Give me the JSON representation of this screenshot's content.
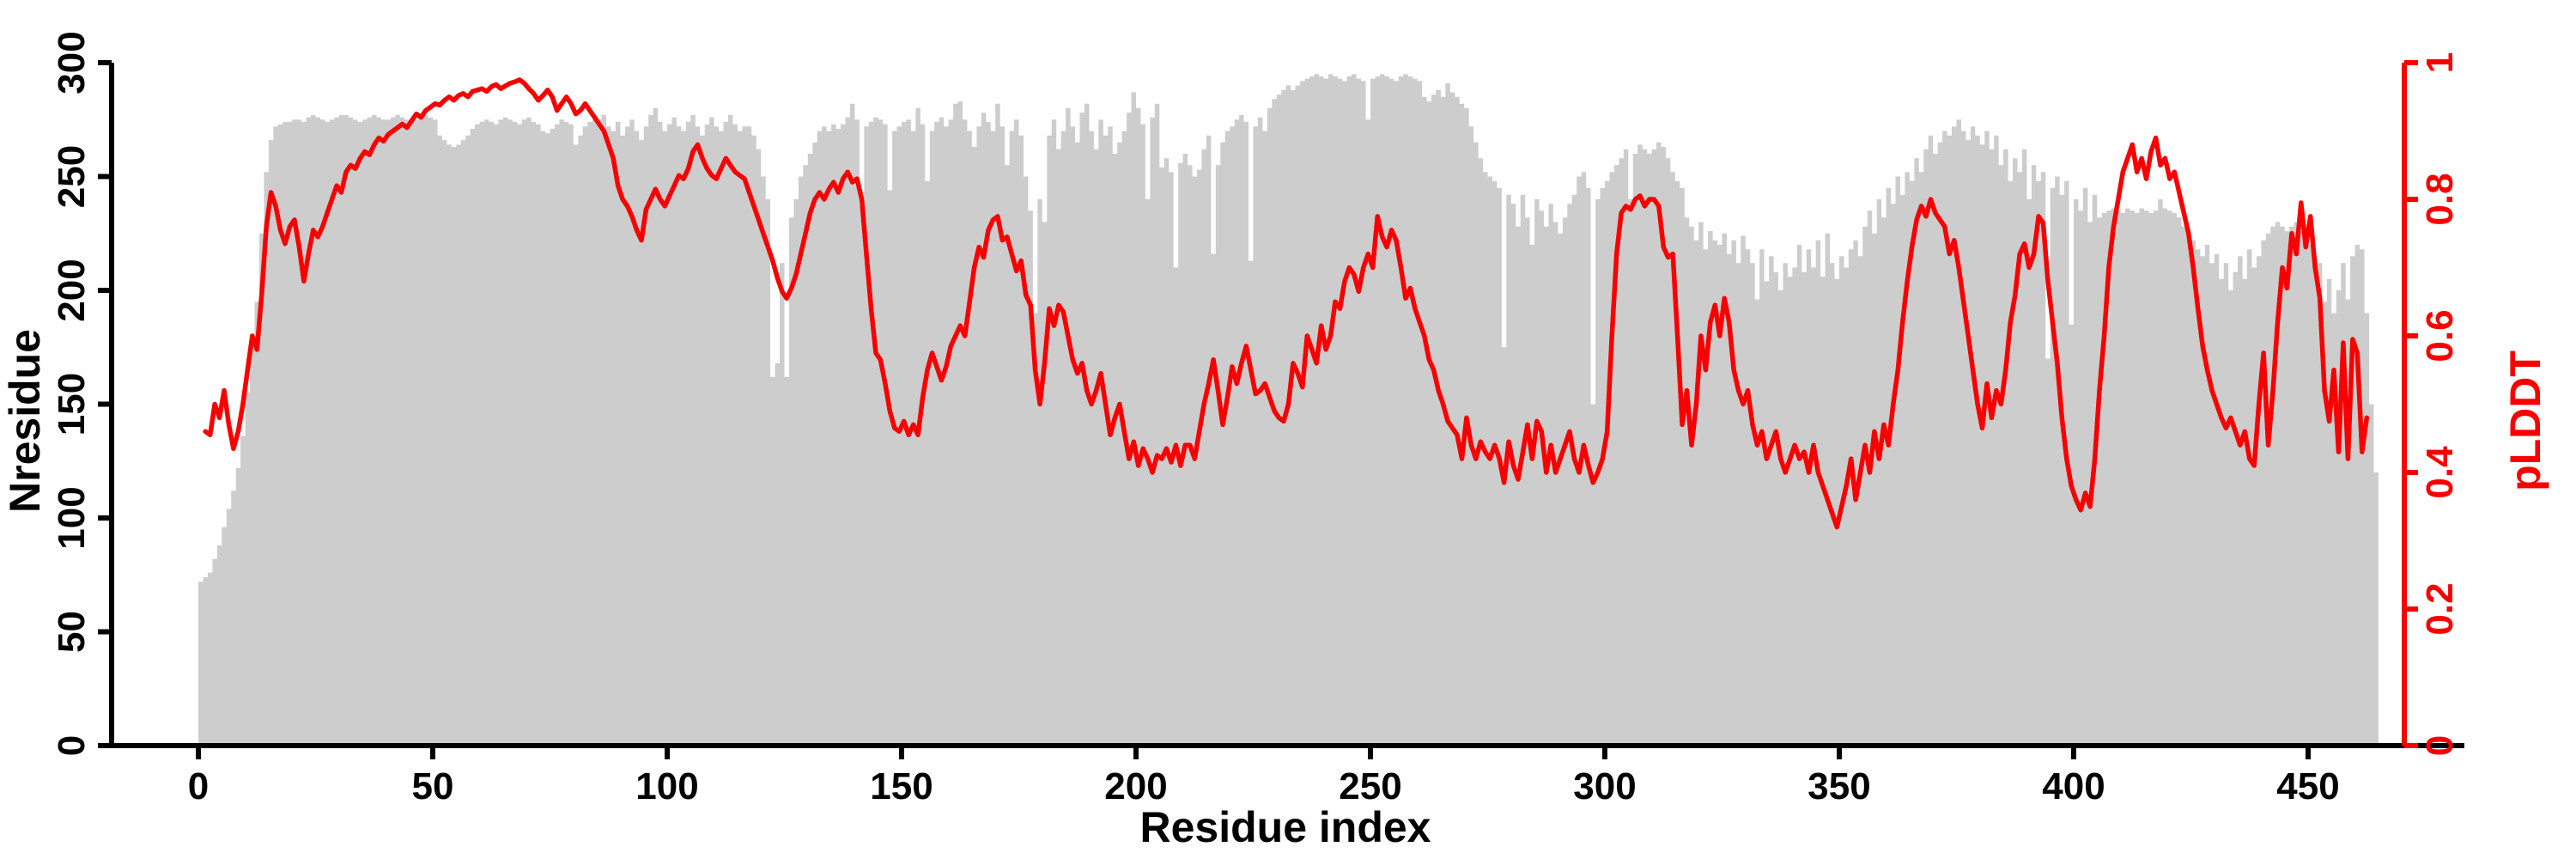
{
  "chart_data": {
    "type": "bar",
    "subtype": "bar-with-line-overlay",
    "title": "",
    "xlabel": "Residue index",
    "ylabel_left": "Nresidue",
    "ylabel_right": "pLDDT",
    "x_range": [
      0,
      465
    ],
    "ylim_left": [
      0,
      300
    ],
    "ylim_right": [
      0,
      1
    ],
    "grid": "off",
    "legend": "none",
    "bar_color": "#cdcdcd",
    "line_color": "#f80000",
    "axis_color_left": "#000000",
    "axis_color_right": "#f80000",
    "x_ticks": [
      0,
      50,
      100,
      150,
      200,
      250,
      300,
      350,
      400,
      450
    ],
    "x_tick_labels": [
      "0",
      "50",
      "100",
      "150",
      "200",
      "250",
      "300",
      "350",
      "400",
      "450"
    ],
    "y_left_ticks": [
      0,
      50,
      100,
      150,
      200,
      250,
      300
    ],
    "y_left_tick_labels": [
      "0",
      "50",
      "100",
      "150",
      "200",
      "250",
      "300"
    ],
    "y_right_ticks": [
      0,
      0.2,
      0.4,
      0.6,
      0.8,
      1
    ],
    "y_right_tick_labels": [
      "0",
      "0.2",
      "0.4",
      "0.6",
      "0.8",
      "1"
    ],
    "series": [
      {
        "name": "Nresidue",
        "kind": "bar",
        "axis": "left",
        "start_index": 0,
        "values": [
          72,
          74,
          76,
          82,
          88,
          96,
          104,
          112,
          122,
          136,
          155,
          176,
          195,
          225,
          252,
          266,
          272,
          273,
          274,
          274,
          275,
          275,
          274,
          276,
          277,
          276,
          275,
          274,
          275,
          276,
          277,
          277,
          276,
          275,
          274,
          275,
          276,
          277,
          276,
          275,
          275,
          276,
          277,
          276,
          275,
          274,
          275,
          276,
          277,
          276,
          275,
          268,
          266,
          264,
          263,
          264,
          266,
          268,
          271,
          273,
          274,
          275,
          274,
          273,
          275,
          276,
          275,
          274,
          273,
          275,
          276,
          274,
          273,
          270,
          269,
          271,
          273,
          275,
          274,
          273,
          264,
          268,
          272,
          274,
          275,
          275,
          277,
          272,
          270,
          274,
          268,
          272,
          275,
          270,
          266,
          272,
          277,
          280,
          274,
          270,
          273,
          276,
          272,
          270,
          274,
          277,
          272,
          268,
          273,
          276,
          272,
          270,
          274,
          277,
          273,
          270,
          272,
          272,
          268,
          262,
          250,
          240,
          162,
          168,
          212,
          162,
          232,
          240,
          250,
          255,
          260,
          265,
          270,
          272,
          270,
          273,
          271,
          273,
          276,
          282,
          275,
          237,
          272,
          274,
          276,
          275,
          273,
          244,
          270,
          272,
          274,
          275,
          270,
          280,
          273,
          248,
          270,
          274,
          276,
          272,
          275,
          282,
          283,
          275,
          270,
          263,
          272,
          278,
          274,
          270,
          282,
          272,
          255,
          270,
          275,
          268,
          250,
          235,
          190,
          240,
          230,
          268,
          275,
          262,
          270,
          280,
          272,
          265,
          278,
          282,
          270,
          262,
          275,
          268,
          272,
          260,
          265,
          270,
          278,
          287,
          280,
          273,
          240,
          276,
          282,
          254,
          258,
          252,
          210,
          256,
          260,
          255,
          250,
          253,
          262,
          268,
          216,
          255,
          265,
          270,
          272,
          275,
          277,
          274,
          213,
          272,
          276,
          270,
          280,
          284,
          286,
          288,
          290,
          288,
          290,
          292,
          293,
          294,
          295,
          294,
          293,
          295,
          294,
          293,
          292,
          294,
          295,
          293,
          292,
          275,
          293,
          294,
          295,
          294,
          293,
          292,
          294,
          295,
          294,
          293,
          292,
          285,
          283,
          286,
          288,
          285,
          291,
          287,
          285,
          282,
          280,
          272,
          265,
          258,
          252,
          250,
          248,
          245,
          175,
          242,
          238,
          228,
          242,
          232,
          220,
          240,
          235,
          228,
          238,
          230,
          225,
          232,
          238,
          242,
          250,
          252,
          245,
          150,
          240,
          245,
          248,
          252,
          255,
          258,
          262,
          240,
          260,
          264,
          262,
          260,
          262,
          265,
          263,
          258,
          252,
          248,
          245,
          232,
          228,
          222,
          230,
          218,
          226,
          222,
          220,
          225,
          216,
          222,
          212,
          224,
          218,
          212,
          196,
          218,
          204,
          215,
          208,
          200,
          212,
          206,
          210,
          220,
          208,
          218,
          210,
          222,
          206,
          225,
          212,
          205,
          215,
          210,
          218,
          222,
          215,
          228,
          235,
          225,
          240,
          232,
          245,
          238,
          250,
          242,
          252,
          248,
          258,
          252,
          262,
          268,
          260,
          265,
          270,
          268,
          272,
          275,
          270,
          266,
          272,
          268,
          264,
          270,
          262,
          268,
          255,
          262,
          248,
          258,
          252,
          262,
          240,
          255,
          248,
          252,
          170,
          245,
          250,
          242,
          248,
          185,
          240,
          235,
          245,
          230,
          242,
          232,
          234,
          235,
          236,
          235,
          234,
          236,
          235,
          234,
          236,
          235,
          234,
          235,
          240,
          236,
          235,
          234,
          232,
          228,
          225,
          222,
          218,
          215,
          220,
          212,
          216,
          205,
          212,
          200,
          208,
          215,
          205,
          218,
          210,
          215,
          222,
          225,
          228,
          230,
          228,
          226,
          228,
          230,
          226,
          224,
          220,
          215,
          212,
          195,
          205,
          190,
          200,
          212,
          196,
          215,
          220,
          218,
          190,
          150,
          120
        ]
      },
      {
        "name": "pLDDT",
        "kind": "line",
        "axis": "right",
        "start_index": 1,
        "values": [
          0.46,
          0.455,
          0.5,
          0.48,
          0.52,
          0.47,
          0.435,
          0.46,
          0.5,
          0.55,
          0.6,
          0.58,
          0.66,
          0.76,
          0.81,
          0.79,
          0.755,
          0.735,
          0.76,
          0.77,
          0.73,
          0.68,
          0.72,
          0.755,
          0.745,
          0.76,
          0.78,
          0.8,
          0.82,
          0.81,
          0.84,
          0.85,
          0.845,
          0.86,
          0.87,
          0.865,
          0.88,
          0.89,
          0.885,
          0.895,
          0.9,
          0.905,
          0.91,
          0.905,
          0.915,
          0.925,
          0.92,
          0.93,
          0.935,
          0.94,
          0.938,
          0.945,
          0.95,
          0.945,
          0.952,
          0.955,
          0.95,
          0.958,
          0.96,
          0.962,
          0.958,
          0.965,
          0.968,
          0.962,
          0.966,
          0.97,
          0.972,
          0.975,
          0.97,
          0.962,
          0.955,
          0.945,
          0.952,
          0.96,
          0.95,
          0.93,
          0.94,
          0.95,
          0.94,
          0.925,
          0.93,
          0.94,
          0.93,
          0.92,
          0.91,
          0.9,
          0.88,
          0.86,
          0.82,
          0.8,
          0.79,
          0.775,
          0.755,
          0.74,
          0.785,
          0.8,
          0.815,
          0.8,
          0.79,
          0.805,
          0.82,
          0.835,
          0.83,
          0.845,
          0.87,
          0.88,
          0.86,
          0.845,
          0.835,
          0.83,
          0.845,
          0.86,
          0.85,
          0.84,
          0.835,
          0.83,
          0.81,
          0.79,
          0.77,
          0.75,
          0.73,
          0.71,
          0.685,
          0.665,
          0.655,
          0.67,
          0.69,
          0.72,
          0.75,
          0.78,
          0.8,
          0.81,
          0.8,
          0.815,
          0.825,
          0.81,
          0.83,
          0.84,
          0.825,
          0.83,
          0.8,
          0.72,
          0.64,
          0.575,
          0.565,
          0.53,
          0.49,
          0.465,
          0.46,
          0.475,
          0.455,
          0.47,
          0.455,
          0.51,
          0.55,
          0.575,
          0.555,
          0.535,
          0.555,
          0.585,
          0.6,
          0.615,
          0.6,
          0.65,
          0.7,
          0.73,
          0.715,
          0.755,
          0.77,
          0.775,
          0.74,
          0.745,
          0.72,
          0.695,
          0.71,
          0.66,
          0.645,
          0.55,
          0.5,
          0.56,
          0.64,
          0.615,
          0.645,
          0.635,
          0.6,
          0.565,
          0.545,
          0.56,
          0.52,
          0.5,
          0.52,
          0.545,
          0.5,
          0.455,
          0.48,
          0.5,
          0.46,
          0.42,
          0.445,
          0.41,
          0.435,
          0.42,
          0.4,
          0.425,
          0.42,
          0.435,
          0.415,
          0.44,
          0.41,
          0.44,
          0.44,
          0.42,
          0.46,
          0.5,
          0.53,
          0.565,
          0.52,
          0.47,
          0.51,
          0.555,
          0.53,
          0.56,
          0.585,
          0.55,
          0.515,
          0.52,
          0.53,
          0.51,
          0.49,
          0.48,
          0.475,
          0.5,
          0.56,
          0.545,
          0.525,
          0.6,
          0.58,
          0.56,
          0.615,
          0.58,
          0.6,
          0.65,
          0.64,
          0.68,
          0.7,
          0.69,
          0.665,
          0.7,
          0.72,
          0.7,
          0.775,
          0.745,
          0.73,
          0.755,
          0.74,
          0.7,
          0.655,
          0.67,
          0.64,
          0.62,
          0.6,
          0.565,
          0.55,
          0.52,
          0.5,
          0.475,
          0.465,
          0.455,
          0.42,
          0.48,
          0.44,
          0.42,
          0.445,
          0.43,
          0.42,
          0.44,
          0.42,
          0.385,
          0.445,
          0.41,
          0.39,
          0.43,
          0.47,
          0.42,
          0.475,
          0.46,
          0.4,
          0.44,
          0.4,
          0.42,
          0.44,
          0.46,
          0.42,
          0.4,
          0.44,
          0.41,
          0.385,
          0.4,
          0.42,
          0.46,
          0.6,
          0.72,
          0.78,
          0.79,
          0.785,
          0.8,
          0.805,
          0.79,
          0.8,
          0.8,
          0.79,
          0.73,
          0.715,
          0.72,
          0.6,
          0.47,
          0.52,
          0.44,
          0.5,
          0.6,
          0.55,
          0.62,
          0.645,
          0.6,
          0.655,
          0.62,
          0.55,
          0.52,
          0.5,
          0.52,
          0.47,
          0.44,
          0.46,
          0.42,
          0.44,
          0.46,
          0.42,
          0.4,
          0.42,
          0.44,
          0.42,
          0.43,
          0.4,
          0.44,
          0.4,
          0.38,
          0.36,
          0.34,
          0.32,
          0.35,
          0.38,
          0.42,
          0.36,
          0.4,
          0.44,
          0.4,
          0.46,
          0.42,
          0.47,
          0.44,
          0.5,
          0.55,
          0.62,
          0.68,
          0.73,
          0.77,
          0.79,
          0.775,
          0.8,
          0.78,
          0.77,
          0.76,
          0.72,
          0.74,
          0.7,
          0.65,
          0.6,
          0.55,
          0.5,
          0.465,
          0.53,
          0.48,
          0.52,
          0.5,
          0.55,
          0.62,
          0.66,
          0.72,
          0.735,
          0.7,
          0.72,
          0.775,
          0.765,
          0.68,
          0.62,
          0.56,
          0.48,
          0.42,
          0.38,
          0.36,
          0.345,
          0.37,
          0.35,
          0.42,
          0.52,
          0.6,
          0.7,
          0.76,
          0.8,
          0.84,
          0.86,
          0.88,
          0.84,
          0.86,
          0.83,
          0.87,
          0.89,
          0.85,
          0.86,
          0.83,
          0.84,
          0.81,
          0.78,
          0.75,
          0.7,
          0.64,
          0.585,
          0.55,
          0.52,
          0.5,
          0.48,
          0.465,
          0.48,
          0.46,
          0.44,
          0.46,
          0.42,
          0.41,
          0.5,
          0.575,
          0.44,
          0.52,
          0.62,
          0.7,
          0.67,
          0.75,
          0.72,
          0.795,
          0.73,
          0.775,
          0.7,
          0.655,
          0.52,
          0.475,
          0.55,
          0.43,
          0.59,
          0.42,
          0.595,
          0.575,
          0.43,
          0.48
        ]
      }
    ]
  },
  "labels": {
    "xlabel": "Residue index",
    "ylabel_left": "Nresidue",
    "ylabel_right": "pLDDT"
  }
}
